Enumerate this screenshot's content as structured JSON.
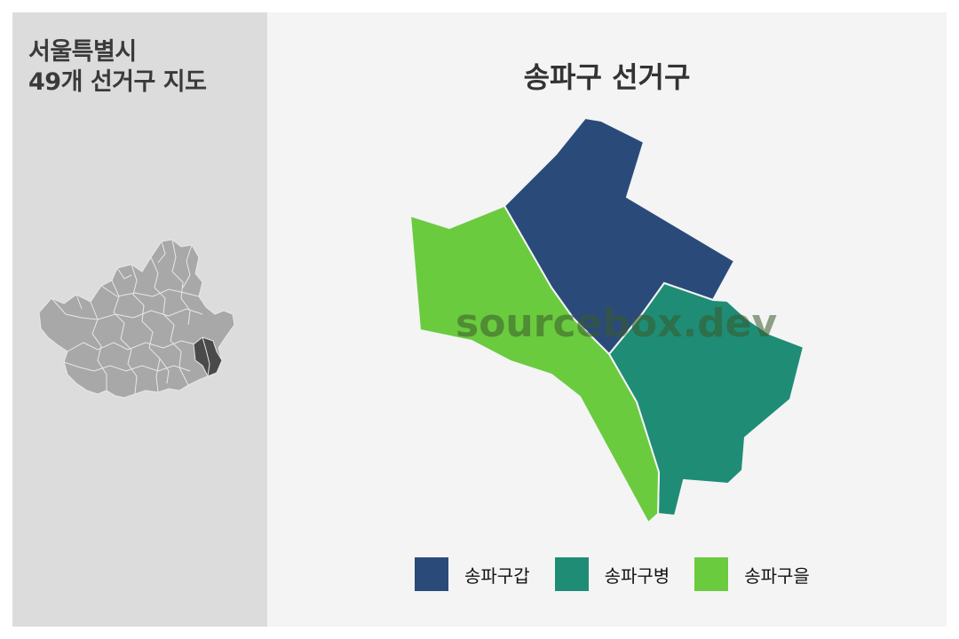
{
  "left_panel": {
    "title_line1": "서울특별시",
    "title_line2": "49개 선거구 지도"
  },
  "main": {
    "title": "송파구 선거구",
    "watermark": "sourcebox.dev"
  },
  "districts": [
    {
      "name": "송파구갑",
      "color": "#2a4b7a"
    },
    {
      "name": "송파구병",
      "color": "#1f8c76"
    },
    {
      "name": "송파구을",
      "color": "#6acb3f"
    }
  ],
  "mini_map": {
    "base_color": "#a8a8a8",
    "highlight_color": "#4a4a4a",
    "border_color": "#e8e8e8"
  }
}
